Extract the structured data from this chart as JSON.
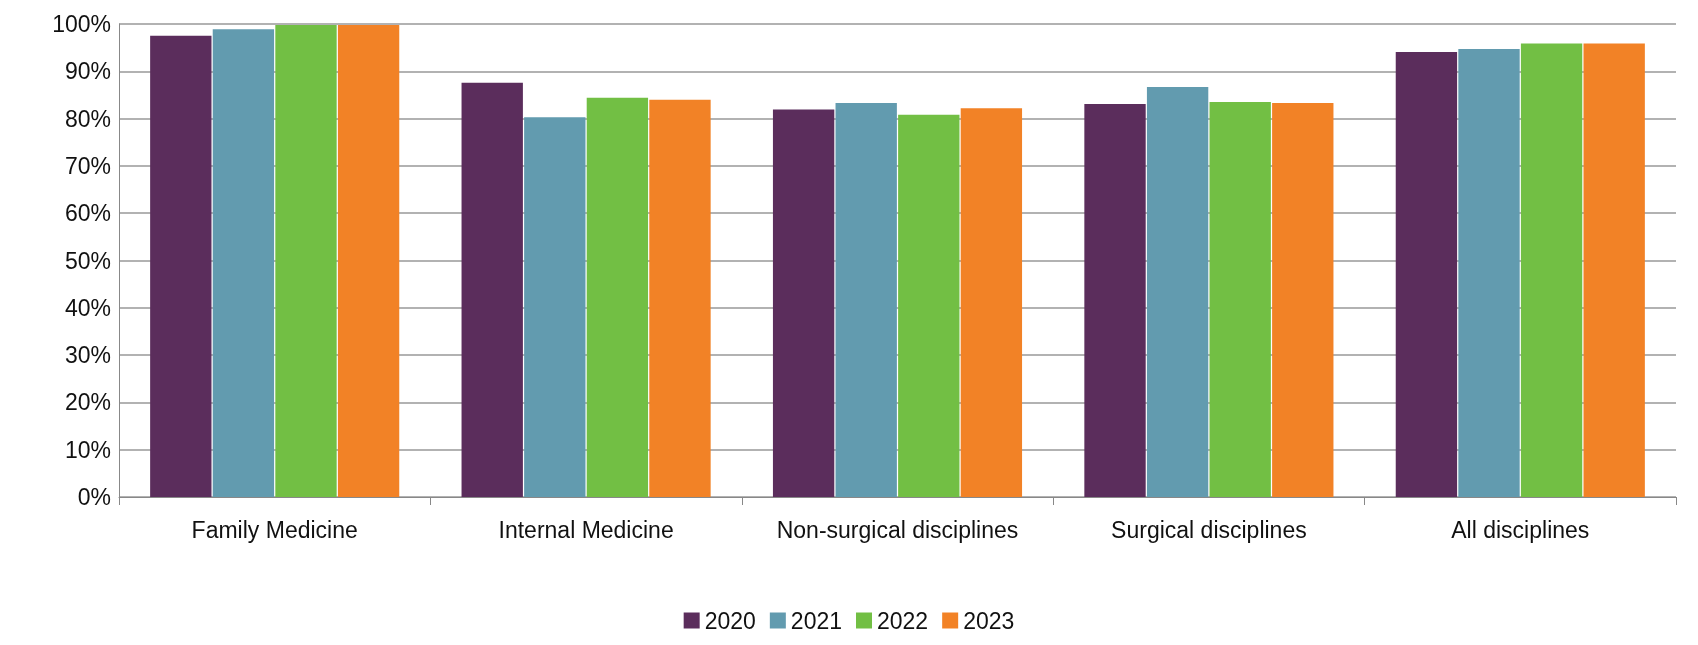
{
  "chart_data": {
    "type": "bar",
    "categories": [
      "Family Medicine",
      "Internal Medicine",
      "Non-surgical disciplines",
      "Surgical disciplines",
      "All disciplines"
    ],
    "series": [
      {
        "name": "2020",
        "color": "#5b2d5c",
        "values": [
          97.5,
          87.6,
          81.9,
          83.1,
          94.1
        ]
      },
      {
        "name": "2021",
        "color": "#629baf",
        "values": [
          98.9,
          80.3,
          83.3,
          86.7,
          94.7
        ]
      },
      {
        "name": "2022",
        "color": "#72bf44",
        "values": [
          99.8,
          84.4,
          80.8,
          83.5,
          95.9
        ]
      },
      {
        "name": "2023",
        "color": "#f28226",
        "values": [
          99.8,
          84.0,
          82.2,
          83.3,
          95.9
        ]
      }
    ],
    "ylim": [
      0,
      100
    ],
    "yticks": [
      {
        "value": 0,
        "label": "0%"
      },
      {
        "value": 10,
        "label": "10%"
      },
      {
        "value": 20,
        "label": "20%"
      },
      {
        "value": 30,
        "label": "30%"
      },
      {
        "value": 40,
        "label": "40%"
      },
      {
        "value": 50,
        "label": "50%"
      },
      {
        "value": 60,
        "label": "60%"
      },
      {
        "value": 70,
        "label": "70%"
      },
      {
        "value": 80,
        "label": "80%"
      },
      {
        "value": 90,
        "label": "90%"
      },
      {
        "value": 100,
        "label": "100%"
      }
    ],
    "grid": "y",
    "legend": "bottom"
  }
}
